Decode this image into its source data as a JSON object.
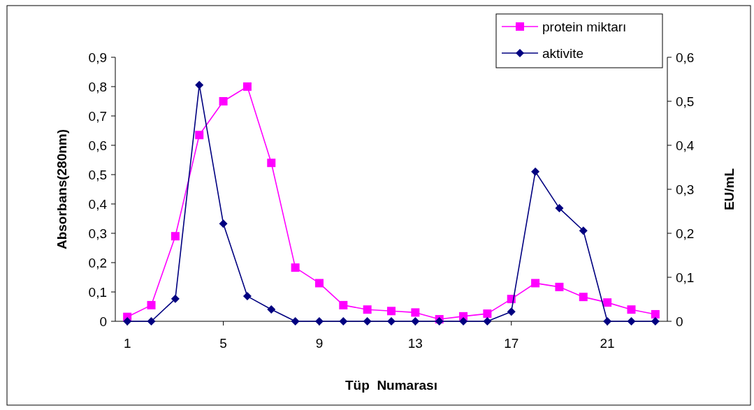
{
  "chart_data": {
    "type": "line",
    "xlabel": "Tüp  Numarası",
    "ylabel": "Absorbans(280nm)",
    "y2label": "EU/mL",
    "x": [
      1,
      2,
      3,
      4,
      5,
      6,
      7,
      8,
      9,
      10,
      11,
      12,
      13,
      14,
      15,
      16,
      17,
      18,
      19,
      20,
      21,
      22,
      23
    ],
    "xlim": [
      0.5,
      23.5
    ],
    "xticks": [
      1,
      5,
      9,
      13,
      17,
      21
    ],
    "ylim": [
      0,
      0.9
    ],
    "yticks": [
      0,
      {
        "value": 0.1,
        "label": "0,1"
      },
      {
        "value": 0.2,
        "label": "0,2"
      },
      {
        "value": 0.3,
        "label": "0,3"
      },
      {
        "value": 0.4,
        "label": "0,4"
      },
      {
        "value": 0.5,
        "label": "0,5"
      },
      {
        "value": 0.6,
        "label": "0,6"
      },
      {
        "value": 0.7,
        "label": "0,7"
      },
      {
        "value": 0.8,
        "label": "0,8"
      },
      {
        "value": 0.9,
        "label": "0,9"
      }
    ],
    "y2lim": [
      0,
      0.6
    ],
    "y2ticks": [
      0,
      {
        "value": 0.1,
        "label": "0,1"
      },
      {
        "value": 0.2,
        "label": "0,2"
      },
      {
        "value": 0.3,
        "label": "0,3"
      },
      {
        "value": 0.4,
        "label": "0,4"
      },
      {
        "value": 0.5,
        "label": "0,5"
      },
      {
        "value": 0.6,
        "label": "0,6"
      }
    ],
    "legend": "top right",
    "grid": false,
    "line_style": "solid",
    "series": [
      {
        "name": "protein miktarı",
        "color": "#ff00ff",
        "marker": "square",
        "values": [
          0.015,
          0.055,
          0.29,
          0.635,
          0.75,
          0.8,
          0.54,
          0.183,
          0.13,
          0.055,
          0.04,
          0.035,
          0.03,
          0.007,
          0.017,
          0.026,
          0.076,
          0.13,
          0.117,
          0.083,
          0.064,
          0.04,
          0.024
        ]
      },
      {
        "name": "aktivite",
        "color": "#000080",
        "marker": "diamond",
        "axis": "y2",
        "values": [
          0,
          0,
          0.051,
          0.537,
          0.222,
          0.057,
          0.027,
          0,
          0,
          0,
          0,
          0,
          0,
          0,
          0,
          0,
          0.022,
          0.34,
          0.257,
          0.206,
          0,
          0,
          0
        ]
      }
    ]
  }
}
